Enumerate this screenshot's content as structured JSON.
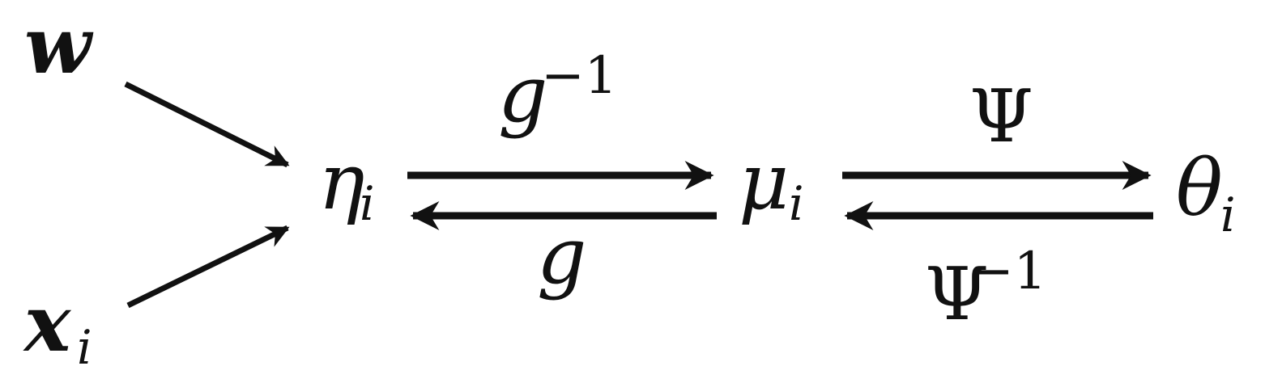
{
  "nodes": {
    "w": "w",
    "x": {
      "base": "x",
      "sub": "i"
    },
    "eta": {
      "base": "η",
      "sub": "i"
    },
    "mu": {
      "base": "μ",
      "sub": "i"
    },
    "theta": {
      "base": "θ",
      "sub": "i"
    }
  },
  "edges": {
    "g_inv": {
      "base": "g",
      "sup": "−1"
    },
    "g": "g",
    "psi": "Ψ",
    "psi_inv": {
      "base": "Ψ",
      "sup": "−1"
    }
  },
  "colors": {
    "ink": "#111111",
    "background": "#ffffff"
  }
}
